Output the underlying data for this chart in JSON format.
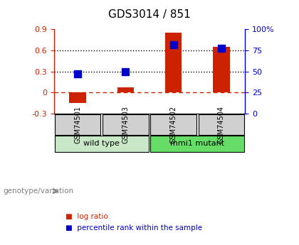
{
  "title": "GDS3014 / 851",
  "samples": [
    "GSM74501",
    "GSM74503",
    "GSM74502",
    "GSM74504"
  ],
  "log_ratios": [
    -0.15,
    0.07,
    0.85,
    0.65
  ],
  "percentile_ranks": [
    0.27,
    0.3,
    0.68,
    0.63
  ],
  "groups": [
    "wild type",
    "wild type",
    "mmi1 mutant",
    "mmi1 mutant"
  ],
  "group_colors": [
    "#b8e0b8",
    "#90ee90"
  ],
  "ylim_left": [
    -0.3,
    0.9
  ],
  "yticks_left": [
    -0.3,
    0.0,
    0.3,
    0.6,
    0.9
  ],
  "ytick_labels_left": [
    "-0.3",
    "0",
    "0.3",
    "0.6",
    "0.9"
  ],
  "ylim_right": [
    0,
    100
  ],
  "yticks_right": [
    0,
    25,
    50,
    75,
    100
  ],
  "ytick_labels_right": [
    "0",
    "25",
    "50",
    "75",
    "100%"
  ],
  "hlines_dotted": [
    0.3,
    0.6
  ],
  "hline_dashed": 0.0,
  "bar_color": "#cc2200",
  "dot_color": "#0000cc",
  "bar_width": 0.35,
  "dot_size": 60,
  "group_annotation": "genotype/variation",
  "legend_logratio": "log ratio",
  "legend_percentile": "percentile rank within the sample",
  "bg_color": "#ffffff",
  "plot_bg": "#ffffff",
  "axis_left_color": "#cc2200",
  "axis_right_color": "#0000cc"
}
